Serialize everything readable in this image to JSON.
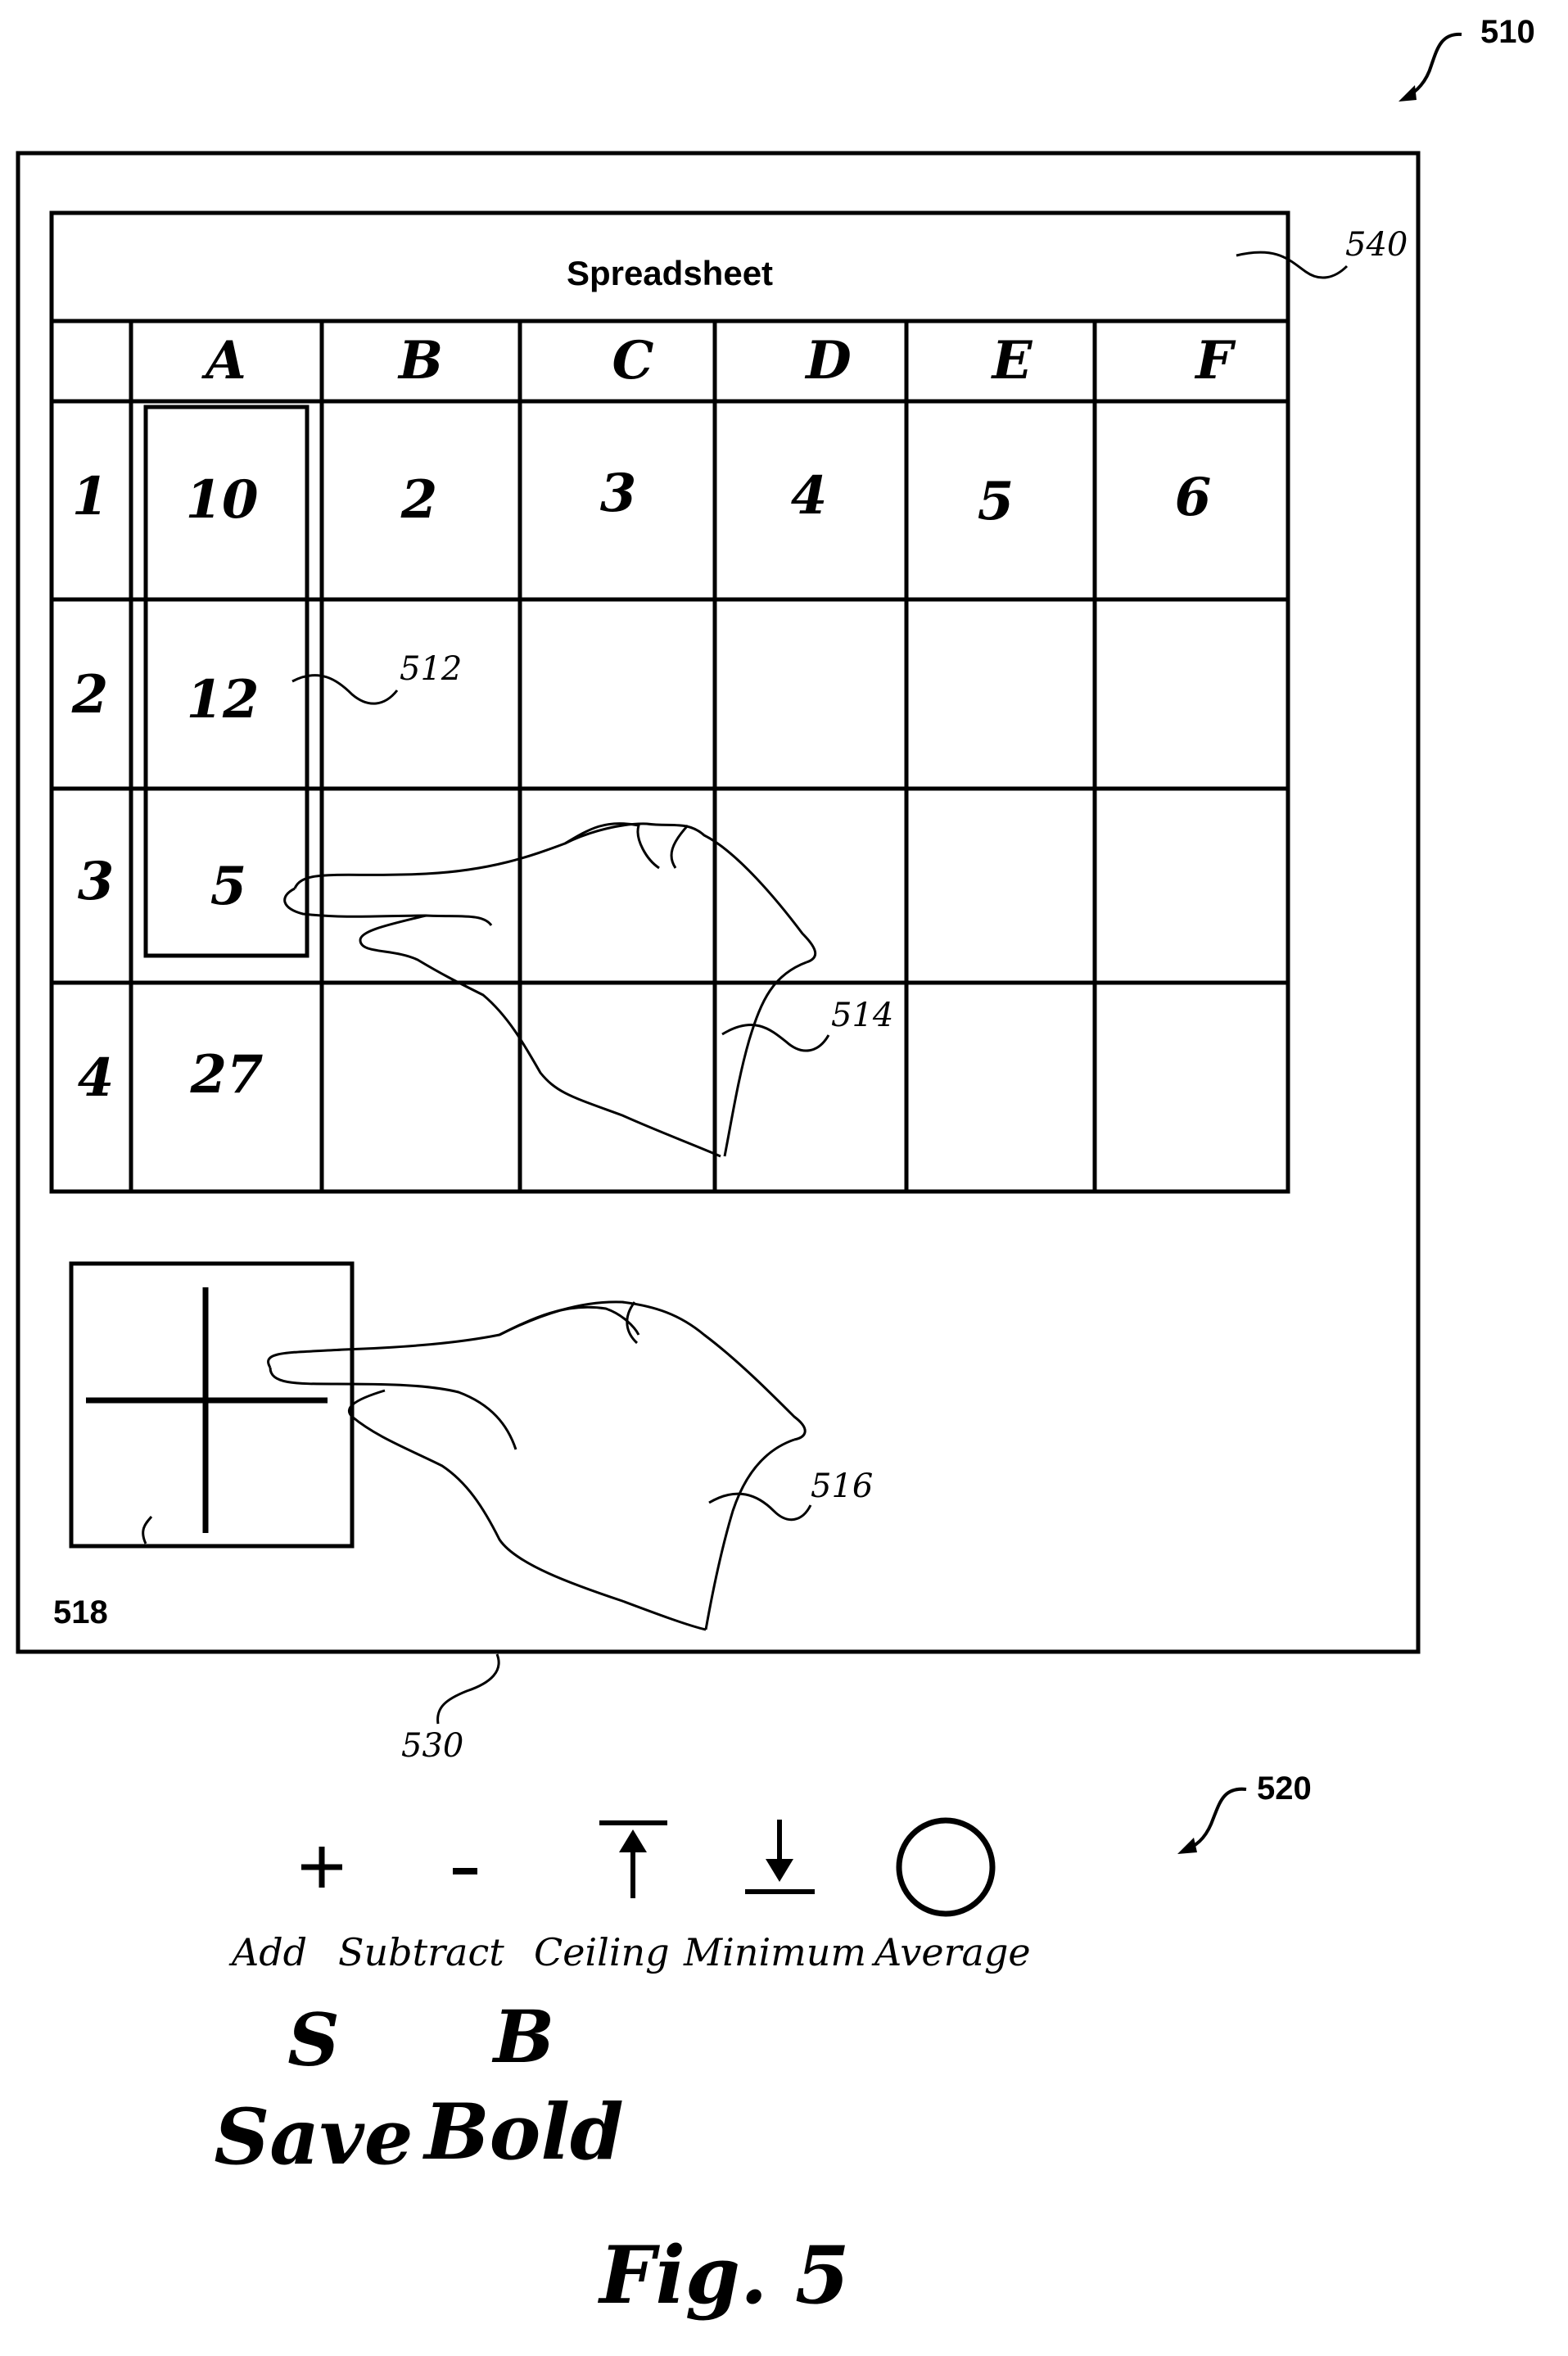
{
  "refs": {
    "device": "510",
    "selection": "512",
    "hand_grid": "514",
    "hand_gesture": "516",
    "gesture_pad": "518",
    "gesture_legend": "520",
    "screen": "530",
    "title_bar": "540"
  },
  "spreadsheet": {
    "title": "Spreadsheet",
    "columns": [
      "A",
      "B",
      "C",
      "D",
      "E",
      "F"
    ],
    "rows": [
      {
        "label": "1",
        "cells": [
          "10",
          "2",
          "3",
          "4",
          "5",
          "6"
        ]
      },
      {
        "label": "2",
        "cells": [
          "12",
          "",
          "",
          "",
          "",
          ""
        ]
      },
      {
        "label": "3",
        "cells": [
          "5",
          "",
          "",
          "",
          "",
          ""
        ]
      },
      {
        "label": "4",
        "cells": [
          "27",
          "",
          "",
          "",
          "",
          ""
        ]
      }
    ]
  },
  "gestures": [
    {
      "icon": "plus-icon",
      "label": "Add"
    },
    {
      "icon": "minus-icon",
      "label": "Subtract"
    },
    {
      "icon": "ceiling-icon",
      "label": "Ceiling"
    },
    {
      "icon": "minimum-icon",
      "label": "Minimum"
    },
    {
      "icon": "circle-icon",
      "label": "Average"
    }
  ],
  "letter_gestures": [
    {
      "glyph": "S",
      "label": "Save"
    },
    {
      "glyph": "B",
      "label": "Bold"
    }
  ],
  "figure_caption": "Fig. 5"
}
